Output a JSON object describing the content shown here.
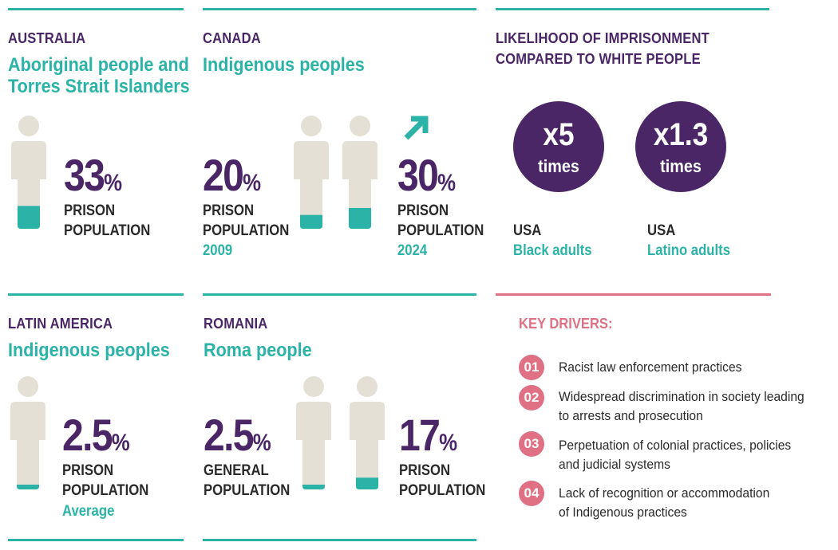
{
  "colors": {
    "teal": "#2ab3a6",
    "purple": "#4a2667",
    "pink": "#e07184",
    "figure": "#e4e0d6",
    "text": "#2a2a2a"
  },
  "australia": {
    "region": "AUSTRALIA",
    "group_line1": "Aboriginal people and",
    "group_line2": "Torres Strait Islanders",
    "value": "33",
    "pct": "%",
    "label1": "PRISON",
    "label2": "POPULATION",
    "fill_fraction": 0.33
  },
  "canada": {
    "region": "CANADA",
    "group": "Indigenous peoples",
    "stat_2009": {
      "value": "20",
      "pct": "%",
      "label1": "PRISON",
      "label2": "POPULATION",
      "year": "2009",
      "fill_fraction": 0.2
    },
    "stat_2024": {
      "value": "30",
      "pct": "%",
      "label1": "PRISON",
      "label2": "POPULATION",
      "year": "2024",
      "fill_fraction": 0.3
    },
    "trend_icon": "arrow-up-right-icon"
  },
  "likelihood": {
    "title_line1": "LIKELIHOOD OF IMPRISONMENT",
    "title_line2": "COMPARED TO WHITE PEOPLE",
    "items": [
      {
        "multiplier": "x5",
        "times": "times",
        "country": "USA",
        "group": "Black adults"
      },
      {
        "multiplier": "x1.3",
        "times": "times",
        "country": "USA",
        "group": "Latino adults"
      }
    ]
  },
  "latin_america": {
    "region": "LATIN AMERICA",
    "group": "Indigenous peoples",
    "value": "2.5",
    "pct": "%",
    "label1": "PRISON",
    "label2": "POPULATION",
    "note": "Average",
    "fill_fraction": 0.025
  },
  "romania": {
    "region": "ROMANIA",
    "group": "Roma people",
    "general": {
      "value": "2.5",
      "pct": "%",
      "label1": "GENERAL",
      "label2": "POPULATION",
      "fill_fraction": 0.025
    },
    "prison": {
      "value": "17",
      "pct": "%",
      "label1": "PRISON",
      "label2": "POPULATION",
      "fill_fraction": 0.17
    }
  },
  "key_drivers": {
    "title": "KEY DRIVERS:",
    "items": [
      {
        "num": "01",
        "line1": "Racist law enforcement practices",
        "line2": ""
      },
      {
        "num": "02",
        "line1": "Widespread discrimination in society leading",
        "line2": "to arrests and prosecution"
      },
      {
        "num": "03",
        "line1": "Perpetuation of colonial practices, policies",
        "line2": "and judicial systems"
      },
      {
        "num": "04",
        "line1": "Lack of recognition or accommodation",
        "line2": "of Indigenous practices"
      }
    ]
  }
}
